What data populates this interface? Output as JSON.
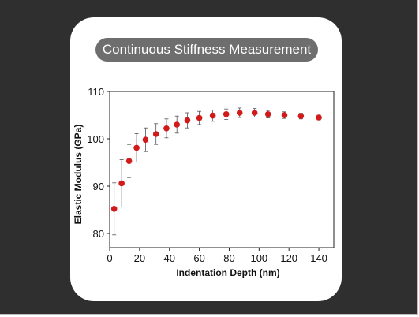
{
  "title": "Continuous Stiffness Measurement",
  "colors": {
    "background": "#2f2f2f",
    "card": "#ffffff",
    "title_pill": "#6e6e6e",
    "point": "#d11a1a",
    "error_bar": "#555555"
  },
  "chart_data": {
    "type": "scatter",
    "title": "Continuous Stiffness Measurement",
    "xlabel": "Indentation Depth (nm)",
    "ylabel": "Elastic Modulus (GPa)",
    "xlim": [
      0,
      150
    ],
    "ylim": [
      77,
      110
    ],
    "xticks": [
      0,
      20,
      40,
      60,
      80,
      100,
      120,
      140
    ],
    "yticks": [
      80,
      90,
      100,
      110
    ],
    "grid": false,
    "series": [
      {
        "x": [
          3,
          8,
          13,
          18,
          24,
          31,
          38,
          45,
          52,
          60,
          69,
          78,
          87,
          97,
          106,
          117,
          128,
          140
        ],
        "y": [
          85.2,
          90.6,
          95.3,
          98.1,
          99.8,
          101.0,
          102.2,
          103.0,
          103.9,
          104.4,
          104.9,
          105.2,
          105.5,
          105.5,
          105.2,
          105.0,
          104.8,
          104.5
        ],
        "error": [
          5.5,
          5.0,
          3.5,
          3.0,
          2.5,
          2.2,
          2.0,
          1.8,
          1.6,
          1.4,
          1.2,
          1.1,
          1.0,
          0.9,
          0.8,
          0.7,
          0.6,
          0.5
        ]
      }
    ]
  }
}
